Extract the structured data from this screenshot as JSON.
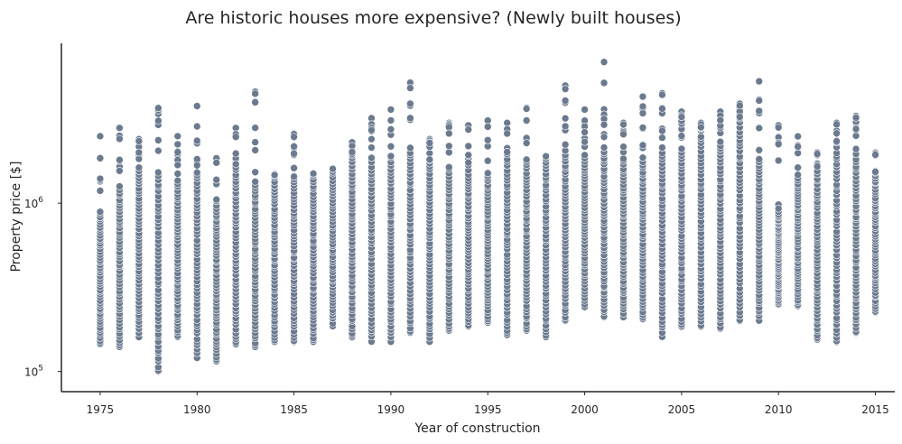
{
  "chart_data": {
    "type": "scatter",
    "title": "Are historic houses more expensive? (Newly built houses)",
    "xlabel": "Year of construction",
    "ylabel": "Property price [$]",
    "xlim": [
      1973,
      2016
    ],
    "ylim_log10": [
      4.88,
      6.95
    ],
    "y_scale": "log",
    "x_ticks": [
      1975,
      1980,
      1985,
      1990,
      1995,
      2000,
      2005,
      2010,
      2015
    ],
    "y_ticks": [
      {
        "value": 100000,
        "base": "10",
        "exp": "5"
      },
      {
        "value": 1000000,
        "base": "10",
        "exp": "6"
      }
    ],
    "grid": false,
    "point_color": "#6b7a8f",
    "years": [
      1975,
      1976,
      1977,
      1978,
      1979,
      1980,
      1981,
      1982,
      1983,
      1984,
      1985,
      1986,
      1987,
      1988,
      1989,
      1990,
      1991,
      1992,
      1993,
      1994,
      1995,
      1996,
      1997,
      1998,
      1999,
      2000,
      2001,
      2002,
      2003,
      2004,
      2005,
      2006,
      2007,
      2008,
      2009,
      2010,
      2011,
      2012,
      2013,
      2014,
      2015
    ],
    "range_min": [
      145000,
      140000,
      160000,
      100000,
      160000,
      120000,
      115000,
      145000,
      140000,
      150000,
      150000,
      150000,
      185000,
      160000,
      150000,
      150000,
      170000,
      150000,
      175000,
      185000,
      195000,
      165000,
      175000,
      160000,
      200000,
      240000,
      210000,
      210000,
      205000,
      160000,
      185000,
      185000,
      180000,
      200000,
      200000,
      250000,
      245000,
      155000,
      150000,
      170000,
      225000
    ],
    "range_max": [
      2500000,
      2800000,
      2400000,
      3700000,
      2500000,
      3800000,
      1850000,
      2800000,
      4600000,
      1500000,
      2600000,
      1500000,
      1600000,
      2300000,
      3200000,
      3600000,
      5200000,
      2400000,
      3000000,
      2900000,
      3100000,
      3000000,
      3700000,
      1900000,
      5000000,
      3600000,
      6900000,
      3000000,
      4300000,
      4500000,
      3500000,
      3000000,
      3500000,
      3900000,
      5300000,
      2900000,
      2500000,
      2000000,
      3000000,
      3300000,
      2000000
    ],
    "dense_max": [
      920000,
      1300000,
      1700000,
      1600000,
      1400000,
      1600000,
      1000000,
      1700000,
      1400000,
      1450000,
      1500000,
      1500000,
      1600000,
      1900000,
      1900000,
      1800000,
      2200000,
      1800000,
      1700000,
      1600000,
      1500000,
      2000000,
      1900000,
      1900000,
      2100000,
      2000000,
      2200000,
      1900000,
      1900000,
      2200000,
      2200000,
      2600000,
      2300000,
      3100000,
      1800000,
      900000,
      1500000,
      1600000,
      2200000,
      2000000,
      1500000
    ]
  }
}
